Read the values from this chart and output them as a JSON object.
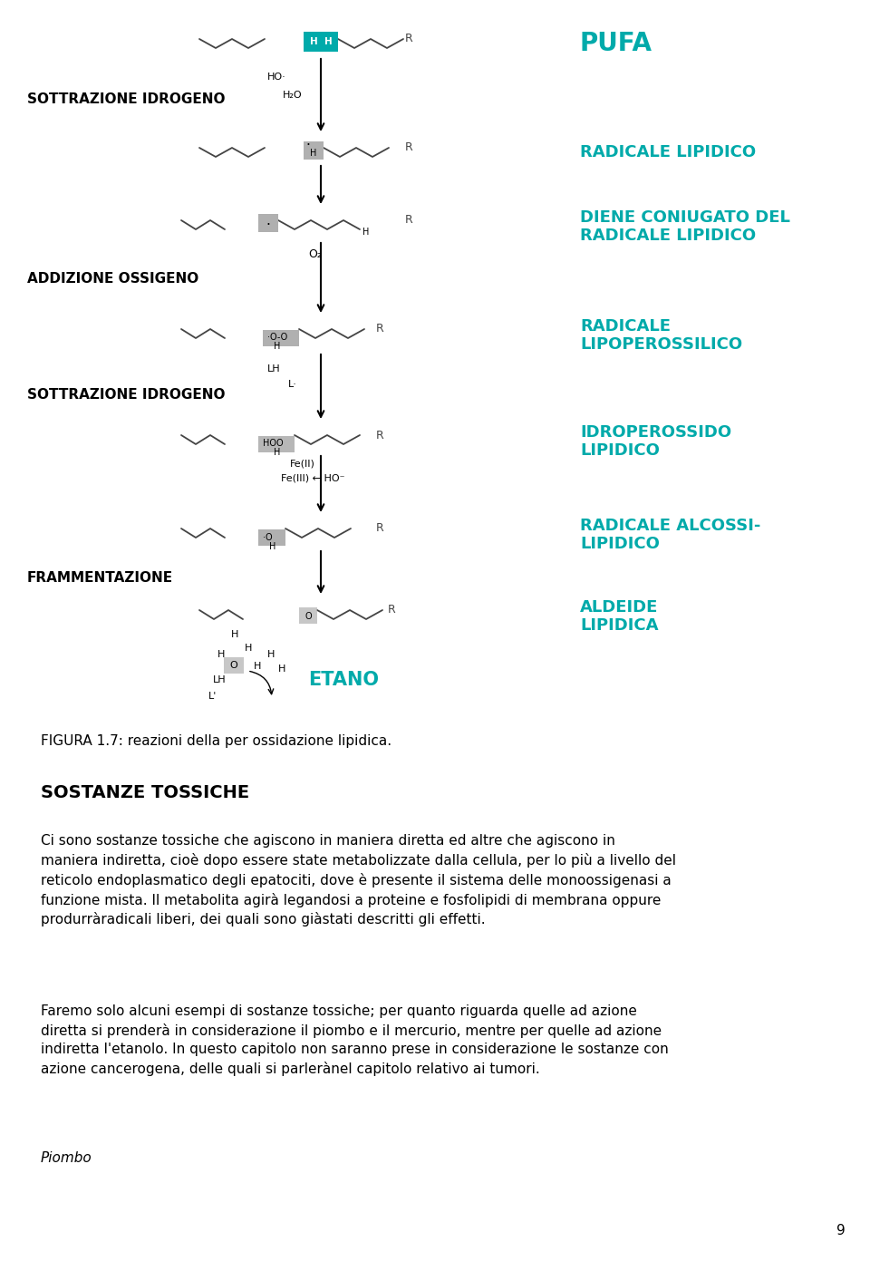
{
  "background_color": "#ffffff",
  "figure_caption": "FIGURA 1.7: reazioni della per ossidazione lipidica.",
  "section_title": "SOSTANZE TOSSICHE",
  "para1": "Ci sono sostanze tossiche che agiscono in maniera diretta ed altre che agiscono in\nmaniera indiretta, cioè dopo essere state metabolizzate dalla cellula, per lo più a livello del\nreticolo endoplasmatico degli epatociti, dove è presente il sistema delle monoossigenasi a\nfunzione mista. Il metabolita agirà legandosi a proteine e fosfolipidi di membrana oppure\nprodurràradicali liberi, dei quali sono giàstati descritti gli effetti.",
  "para2": "Faremo solo alcuni esempi di sostanze tossiche; per quanto riguarda quelle ad azione\ndiretta si prenderà in considerazione il piombo e il mercurio, mentre per quelle ad azione\nindiretta l'etanolo. In questo capitolo non saranno prese in considerazione le sostanze con\nazione cancerogena, delle quali si parlerànel capitolo relativo ai tumori.",
  "piombo_label": "Piombo",
  "page_number": "9",
  "teal_color": "#00AAAA",
  "black_color": "#000000"
}
